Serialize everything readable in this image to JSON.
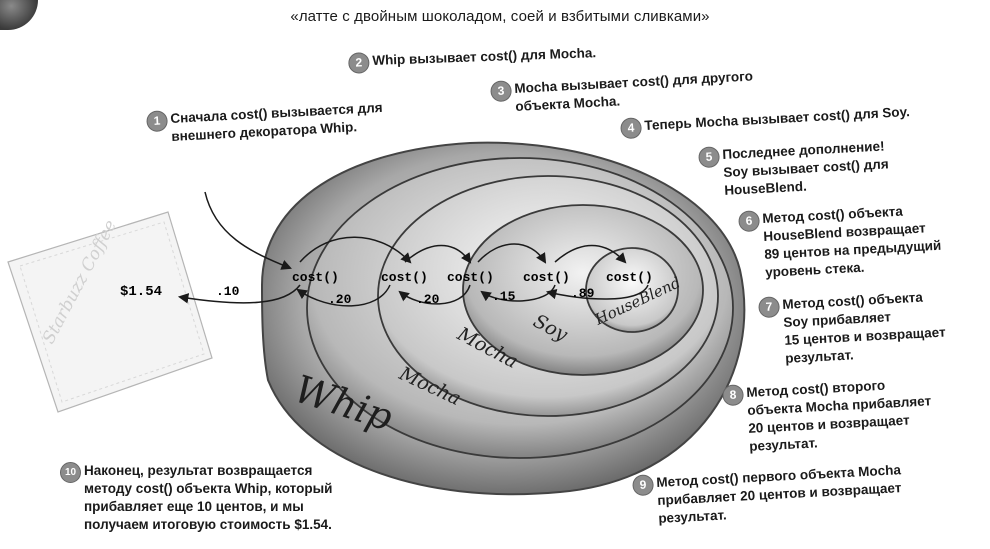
{
  "headline": "«латте с двойным шоколадом, соей и взбитыми сливками»",
  "notes": [
    {
      "num": "1",
      "text": "Сначала cost() вызывается для\nвнешнего декоратора Whip."
    },
    {
      "num": "2",
      "text": "Whip вызывает cost() для Mocha."
    },
    {
      "num": "3",
      "text": "Mocha вызывает cost() для другого\nобъекта Mocha."
    },
    {
      "num": "4",
      "text": "Теперь Mocha вызывает cost() для Soy."
    },
    {
      "num": "5",
      "text": "Последнее дополнение!\nSoy вызывает cost() для\nHouseBlend."
    },
    {
      "num": "6",
      "text": "Метод cost() объекта\nHouseBlend возвращает\n89 центов на предыдущий\nуровень стека."
    },
    {
      "num": "7",
      "text": "Метод cost() объекта\nSoy прибавляет\n15 центов и возвращает\nрезультат."
    },
    {
      "num": "8",
      "text": "Метод cost() второго\nобъекта Mocha прибавляет\n20 центов и возвращает\nрезультат."
    },
    {
      "num": "9",
      "text": "Метод cost() первого объекта Mocha\nприбавляет 20 центов и возвращает\nрезультат."
    },
    {
      "num": "10",
      "text": "Наконец, результат возвращается\nметоду cost() объекта Whip, который\nприбавляет еще 10 центов, и мы\nполучаем итоговую стоимость $1.54."
    }
  ],
  "layers": {
    "whip": "Whip",
    "mocha_outer": "Mocha",
    "mocha_inner": "Mocha",
    "soy": "Soy",
    "houseblend": "HouseBlend"
  },
  "calls": {
    "c1": "cost()",
    "c2": "cost()",
    "c3": "cost()",
    "c4": "cost()",
    "c5": "cost()"
  },
  "returns": {
    "r1": ".10",
    "r2": ".20",
    "r3": ".20",
    "r4": ".15",
    "r5": ".89"
  },
  "total": "$1.54",
  "napkin": {
    "brand": "Starbuzz Coffee"
  },
  "colors": {
    "badge": "#8c8c8c",
    "text": "#1a1a1a"
  }
}
